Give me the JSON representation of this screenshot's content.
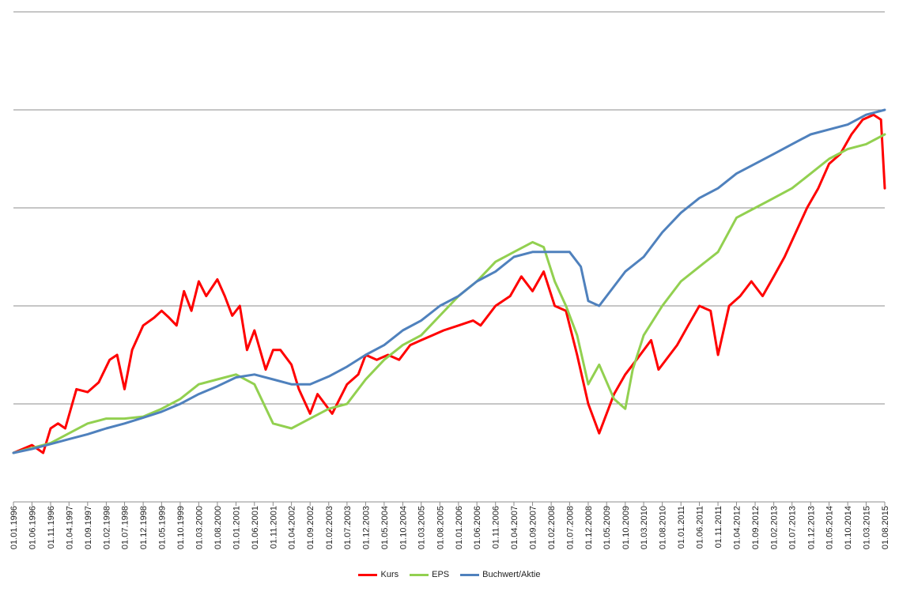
{
  "chart_data": {
    "type": "line",
    "title": "",
    "xlabel": "",
    "ylabel": "",
    "grid": true,
    "legend_position": "bottom",
    "ylim": [
      -0.5,
      4.5
    ],
    "yticks": [
      -0.5,
      0.5,
      1.5,
      2.5,
      3.5,
      4.5
    ],
    "x_range": [
      "1996-01-01",
      "2015-08-01"
    ],
    "tick_labels": [
      "01.01.1996",
      "01.06.1996",
      "01.11.1996",
      "01.04.1997",
      "01.09.1997",
      "01.02.1998",
      "01.07.1998",
      "01.12.1998",
      "01.05.1999",
      "01.10.1999",
      "01.03.2000",
      "01.08.2000",
      "01.01.2001",
      "01.06.2001",
      "01.11.2001",
      "01.04.2002",
      "01.09.2002",
      "01.02.2003",
      "01.07.2003",
      "01.12.2003",
      "01.05.2004",
      "01.10.2004",
      "01.03.2005",
      "01.08.2005",
      "01.01.2006",
      "01.06.2006",
      "01.11.2006",
      "01.04.2007",
      "01.09.2007",
      "01.02.2008",
      "01.07.2008",
      "01.12.2008",
      "01.05.2009",
      "01.10.2009",
      "01.03.2010",
      "01.08.2010",
      "01.01.2011",
      "01.06.2011",
      "01.11.2011",
      "01.04.2012",
      "01.09.2012",
      "01.02.2013",
      "01.07.2013",
      "01.12.2013",
      "01.05.2014",
      "01.10.2014",
      "01.03.2015",
      "01.08.2015"
    ],
    "series": [
      {
        "name": "Kurs",
        "color": "#ff0000",
        "points": [
          [
            "1996-01-01",
            0.0
          ],
          [
            "1996-06-01",
            0.08
          ],
          [
            "1996-09-01",
            0.0
          ],
          [
            "1996-11-01",
            0.25
          ],
          [
            "1997-01-01",
            0.3
          ],
          [
            "1997-03-01",
            0.25
          ],
          [
            "1997-06-01",
            0.65
          ],
          [
            "1997-09-01",
            0.62
          ],
          [
            "1997-12-01",
            0.72
          ],
          [
            "1998-03-01",
            0.95
          ],
          [
            "1998-05-01",
            1.0
          ],
          [
            "1998-07-01",
            0.65
          ],
          [
            "1998-09-01",
            1.05
          ],
          [
            "1998-12-01",
            1.3
          ],
          [
            "1999-03-01",
            1.38
          ],
          [
            "1999-05-01",
            1.45
          ],
          [
            "1999-07-01",
            1.38
          ],
          [
            "1999-09-01",
            1.3
          ],
          [
            "1999-11-01",
            1.65
          ],
          [
            "2000-01-01",
            1.45
          ],
          [
            "2000-03-01",
            1.75
          ],
          [
            "2000-05-01",
            1.6
          ],
          [
            "2000-08-01",
            1.77
          ],
          [
            "2000-10-01",
            1.6
          ],
          [
            "2000-12-01",
            1.4
          ],
          [
            "2001-02-01",
            1.5
          ],
          [
            "2001-04-01",
            1.05
          ],
          [
            "2001-06-01",
            1.25
          ],
          [
            "2001-09-01",
            0.85
          ],
          [
            "2001-11-01",
            1.05
          ],
          [
            "2002-01-01",
            1.05
          ],
          [
            "2002-04-01",
            0.9
          ],
          [
            "2002-06-01",
            0.65
          ],
          [
            "2002-09-01",
            0.4
          ],
          [
            "2002-11-01",
            0.6
          ],
          [
            "2003-03-01",
            0.4
          ],
          [
            "2003-07-01",
            0.7
          ],
          [
            "2003-10-01",
            0.8
          ],
          [
            "2003-12-01",
            1.0
          ],
          [
            "2004-03-01",
            0.95
          ],
          [
            "2004-06-01",
            1.0
          ],
          [
            "2004-09-01",
            0.95
          ],
          [
            "2004-12-01",
            1.1
          ],
          [
            "2005-03-01",
            1.15
          ],
          [
            "2005-06-01",
            1.2
          ],
          [
            "2005-09-01",
            1.25
          ],
          [
            "2006-01-01",
            1.3
          ],
          [
            "2006-05-01",
            1.35
          ],
          [
            "2006-07-01",
            1.3
          ],
          [
            "2006-11-01",
            1.5
          ],
          [
            "2007-03-01",
            1.6
          ],
          [
            "2007-06-01",
            1.8
          ],
          [
            "2007-09-01",
            1.65
          ],
          [
            "2007-12-01",
            1.85
          ],
          [
            "2008-03-01",
            1.5
          ],
          [
            "2008-06-01",
            1.45
          ],
          [
            "2008-09-01",
            1.0
          ],
          [
            "2008-12-01",
            0.5
          ],
          [
            "2009-03-01",
            0.2
          ],
          [
            "2009-07-01",
            0.6
          ],
          [
            "2009-10-01",
            0.8
          ],
          [
            "2010-01-01",
            0.95
          ],
          [
            "2010-05-01",
            1.15
          ],
          [
            "2010-07-01",
            0.85
          ],
          [
            "2010-10-01",
            1.0
          ],
          [
            "2010-12-01",
            1.1
          ],
          [
            "2011-03-01",
            1.3
          ],
          [
            "2011-06-01",
            1.5
          ],
          [
            "2011-09-01",
            1.45
          ],
          [
            "2011-11-01",
            1.0
          ],
          [
            "2012-02-01",
            1.5
          ],
          [
            "2012-05-01",
            1.6
          ],
          [
            "2012-08-01",
            1.75
          ],
          [
            "2012-11-01",
            1.6
          ],
          [
            "2013-02-01",
            1.8
          ],
          [
            "2013-05-01",
            2.0
          ],
          [
            "2013-08-01",
            2.25
          ],
          [
            "2013-11-01",
            2.5
          ],
          [
            "2014-02-01",
            2.7
          ],
          [
            "2014-05-01",
            2.95
          ],
          [
            "2014-08-01",
            3.05
          ],
          [
            "2014-11-01",
            3.25
          ],
          [
            "2015-02-01",
            3.4
          ],
          [
            "2015-05-01",
            3.45
          ],
          [
            "2015-07-01",
            3.4
          ],
          [
            "2015-08-01",
            2.7
          ]
        ]
      },
      {
        "name": "EPS",
        "color": "#92d050",
        "points": [
          [
            "1996-01-01",
            0.0
          ],
          [
            "1996-06-01",
            0.05
          ],
          [
            "1996-11-01",
            0.1
          ],
          [
            "1997-04-01",
            0.2
          ],
          [
            "1997-09-01",
            0.3
          ],
          [
            "1998-02-01",
            0.35
          ],
          [
            "1998-07-01",
            0.35
          ],
          [
            "1998-12-01",
            0.37
          ],
          [
            "1999-05-01",
            0.45
          ],
          [
            "1999-10-01",
            0.55
          ],
          [
            "2000-03-01",
            0.7
          ],
          [
            "2000-08-01",
            0.75
          ],
          [
            "2001-01-01",
            0.8
          ],
          [
            "2001-06-01",
            0.7
          ],
          [
            "2001-11-01",
            0.3
          ],
          [
            "2002-04-01",
            0.25
          ],
          [
            "2002-09-01",
            0.35
          ],
          [
            "2003-02-01",
            0.45
          ],
          [
            "2003-07-01",
            0.5
          ],
          [
            "2003-12-01",
            0.75
          ],
          [
            "2004-05-01",
            0.95
          ],
          [
            "2004-10-01",
            1.1
          ],
          [
            "2005-03-01",
            1.2
          ],
          [
            "2005-08-01",
            1.4
          ],
          [
            "2006-01-01",
            1.6
          ],
          [
            "2006-06-01",
            1.75
          ],
          [
            "2006-11-01",
            1.95
          ],
          [
            "2007-04-01",
            2.05
          ],
          [
            "2007-09-01",
            2.15
          ],
          [
            "2007-12-01",
            2.1
          ],
          [
            "2008-03-01",
            1.75
          ],
          [
            "2008-06-01",
            1.5
          ],
          [
            "2008-09-01",
            1.2
          ],
          [
            "2008-12-01",
            0.7
          ],
          [
            "2009-03-01",
            0.9
          ],
          [
            "2009-07-01",
            0.55
          ],
          [
            "2009-10-01",
            0.45
          ],
          [
            "2009-12-01",
            0.85
          ],
          [
            "2010-03-01",
            1.2
          ],
          [
            "2010-08-01",
            1.5
          ],
          [
            "2011-01-01",
            1.75
          ],
          [
            "2011-06-01",
            1.9
          ],
          [
            "2011-11-01",
            2.05
          ],
          [
            "2012-04-01",
            2.4
          ],
          [
            "2012-09-01",
            2.5
          ],
          [
            "2013-02-01",
            2.6
          ],
          [
            "2013-07-01",
            2.7
          ],
          [
            "2013-12-01",
            2.85
          ],
          [
            "2014-05-01",
            3.0
          ],
          [
            "2014-10-01",
            3.1
          ],
          [
            "2015-03-01",
            3.15
          ],
          [
            "2015-08-01",
            3.25
          ]
        ]
      },
      {
        "name": "Buchwert/Aktie",
        "color": "#4f81bd",
        "points": [
          [
            "1996-01-01",
            0.0
          ],
          [
            "1996-06-01",
            0.04
          ],
          [
            "1996-11-01",
            0.09
          ],
          [
            "1997-04-01",
            0.14
          ],
          [
            "1997-09-01",
            0.19
          ],
          [
            "1998-02-01",
            0.25
          ],
          [
            "1998-07-01",
            0.3
          ],
          [
            "1998-12-01",
            0.36
          ],
          [
            "1999-05-01",
            0.42
          ],
          [
            "1999-10-01",
            0.5
          ],
          [
            "2000-03-01",
            0.6
          ],
          [
            "2000-08-01",
            0.68
          ],
          [
            "2001-01-01",
            0.77
          ],
          [
            "2001-06-01",
            0.8
          ],
          [
            "2001-11-01",
            0.75
          ],
          [
            "2002-04-01",
            0.7
          ],
          [
            "2002-09-01",
            0.7
          ],
          [
            "2003-02-01",
            0.78
          ],
          [
            "2003-07-01",
            0.88
          ],
          [
            "2003-12-01",
            1.0
          ],
          [
            "2004-05-01",
            1.1
          ],
          [
            "2004-10-01",
            1.25
          ],
          [
            "2005-03-01",
            1.35
          ],
          [
            "2005-08-01",
            1.5
          ],
          [
            "2006-01-01",
            1.6
          ],
          [
            "2006-06-01",
            1.75
          ],
          [
            "2006-11-01",
            1.85
          ],
          [
            "2007-04-01",
            2.0
          ],
          [
            "2007-09-01",
            2.05
          ],
          [
            "2008-02-01",
            2.05
          ],
          [
            "2008-07-01",
            2.05
          ],
          [
            "2008-10-01",
            1.9
          ],
          [
            "2008-12-01",
            1.55
          ],
          [
            "2009-03-01",
            1.5
          ],
          [
            "2009-05-01",
            1.6
          ],
          [
            "2009-10-01",
            1.85
          ],
          [
            "2010-03-01",
            2.0
          ],
          [
            "2010-08-01",
            2.25
          ],
          [
            "2011-01-01",
            2.45
          ],
          [
            "2011-06-01",
            2.6
          ],
          [
            "2011-11-01",
            2.7
          ],
          [
            "2012-04-01",
            2.85
          ],
          [
            "2012-09-01",
            2.95
          ],
          [
            "2013-02-01",
            3.05
          ],
          [
            "2013-07-01",
            3.15
          ],
          [
            "2013-12-01",
            3.25
          ],
          [
            "2014-05-01",
            3.3
          ],
          [
            "2014-10-01",
            3.35
          ],
          [
            "2015-03-01",
            3.45
          ],
          [
            "2015-08-01",
            3.5
          ]
        ]
      }
    ]
  }
}
